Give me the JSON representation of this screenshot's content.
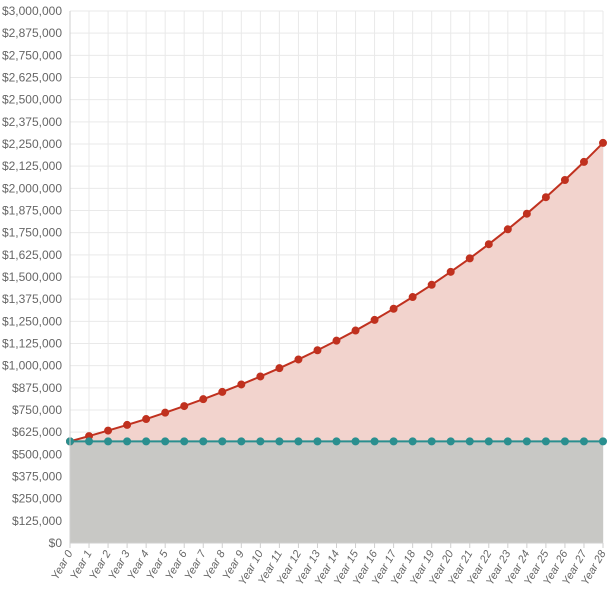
{
  "chart_data": {
    "type": "line",
    "title": "",
    "xlabel": "",
    "ylabel": "",
    "categories": [
      "Year 0",
      "Year 1",
      "Year 2",
      "Year 3",
      "Year 4",
      "Year 5",
      "Year 6",
      "Year 7",
      "Year 8",
      "Year 9",
      "Year 10",
      "Year 11",
      "Year 12",
      "Year 13",
      "Year 14",
      "Year 15",
      "Year 16",
      "Year 17",
      "Year 18",
      "Year 19",
      "Year 20",
      "Year 21",
      "Year 22",
      "Year 23",
      "Year 24",
      "Year 25",
      "Year 26",
      "Year 27",
      "Year 28"
    ],
    "y_ticks": [
      "$0",
      "$125,000",
      "$250,000",
      "$375,000",
      "$500,000",
      "$625,000",
      "$750,000",
      "$875,000",
      "$1,000,000",
      "$1,125,000",
      "$1,250,000",
      "$1,375,000",
      "$1,500,000",
      "$1,625,000",
      "$1,750,000",
      "$1,875,000",
      "$2,000,000",
      "$2,125,000",
      "$2,250,000",
      "$2,375,000",
      "$2,500,000",
      "$2,625,000",
      "$2,750,000",
      "$2,875,000",
      "$3,000,000"
    ],
    "ylim": [
      0,
      3000000
    ],
    "grid": true,
    "series": [
      {
        "values": [
          573000,
          603000,
          634000,
          666000,
          699000,
          735000,
          772000,
          811000,
          852000,
          894000,
          939000,
          986000,
          1035000,
          1087000,
          1141000,
          1198000,
          1258000,
          1321000,
          1387000,
          1456000,
          1529000,
          1605000,
          1685000,
          1769000,
          1857000,
          1950000,
          2047000,
          2149000,
          2256000
        ],
        "line_color": "#c0311f",
        "fill_color": "#f2d3cd",
        "marker_color": "#c0311f"
      },
      {
        "values": [
          573000,
          573000,
          573000,
          573000,
          573000,
          573000,
          573000,
          573000,
          573000,
          573000,
          573000,
          573000,
          573000,
          573000,
          573000,
          573000,
          573000,
          573000,
          573000,
          573000,
          573000,
          573000,
          573000,
          573000,
          573000,
          573000,
          573000,
          573000,
          573000
        ],
        "line_color": "#2a8f8f",
        "fill_color": "#c8c8c5",
        "marker_color": "#2a8f8f"
      }
    ]
  }
}
